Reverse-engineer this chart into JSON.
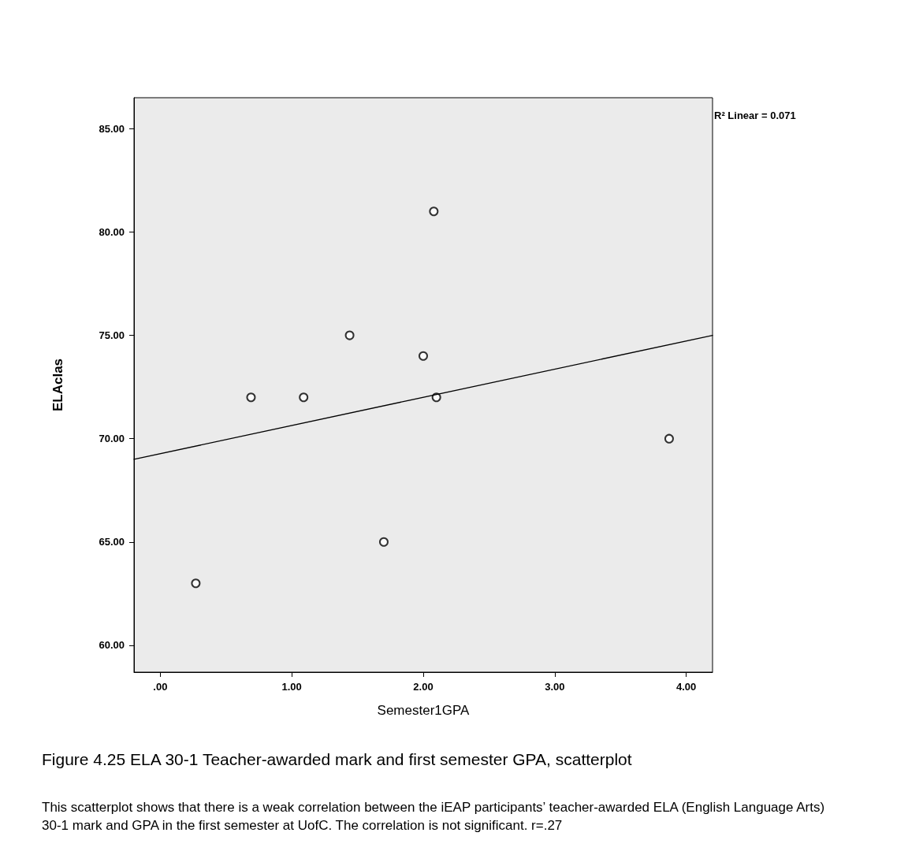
{
  "chart_data": {
    "type": "scatter",
    "xlabel": "Semester1GPA",
    "ylabel": "ELAclas",
    "xlim": [
      -0.2,
      4.2
    ],
    "ylim": [
      58.7,
      86.5
    ],
    "xticks": [
      {
        "value": 0,
        "label": ".00"
      },
      {
        "value": 1,
        "label": "1.00"
      },
      {
        "value": 2,
        "label": "2.00"
      },
      {
        "value": 3,
        "label": "3.00"
      },
      {
        "value": 4,
        "label": "4.00"
      }
    ],
    "yticks": [
      {
        "value": 60,
        "label": "60.00"
      },
      {
        "value": 65,
        "label": "65.00"
      },
      {
        "value": 70,
        "label": "70.00"
      },
      {
        "value": 75,
        "label": "75.00"
      },
      {
        "value": 80,
        "label": "80.00"
      },
      {
        "value": 85,
        "label": "85.00"
      }
    ],
    "marker": "circle",
    "series": [
      {
        "type": "scatter",
        "color": "#000000",
        "x": [
          0.27,
          0.69,
          1.09,
          1.44,
          1.7,
          2.0,
          2.08,
          2.1,
          3.87
        ],
        "values": [
          63,
          72,
          72,
          75,
          65,
          74,
          81,
          72,
          70
        ]
      },
      {
        "type": "line",
        "color": "#000000",
        "marker": "none",
        "line_style": "solid",
        "x": [
          -0.2,
          4.2
        ],
        "values": [
          69,
          75
        ]
      }
    ],
    "annotations": [
      "R² Linear = 0.071",
      "Figure 4.25 ELA 30-1 Teacher-awarded mark and first semester GPA, scatterplot",
      "This scatterplot shows that there is a weak correlation between the iEAP participants’ teacher-awarded ELA (English Language Arts) 30-1 mark and GPA in the first semester at UofC. The correlation is not significant. r=.27"
    ]
  }
}
